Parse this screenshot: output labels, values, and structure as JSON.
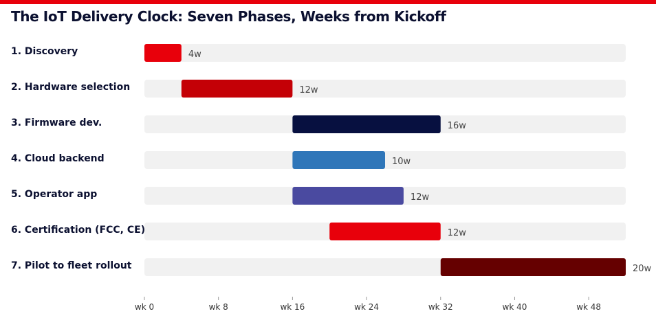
{
  "colors": {
    "accent": "#e8000b",
    "title": "#0b1030",
    "track": "#f1f1f1",
    "axis": "#999999"
  },
  "chart_data": {
    "type": "bar",
    "orientation": "horizontal-gantt",
    "title": "The IoT Delivery Clock: Seven Phases, Weeks from Kickoff",
    "xlabel": "",
    "ylabel": "",
    "xlim": [
      0,
      52
    ],
    "x_ticks": [
      0,
      8,
      16,
      24,
      32,
      40,
      48
    ],
    "x_tick_labels": [
      "wk 0",
      "wk 8",
      "wk 16",
      "wk 24",
      "wk 32",
      "wk 40",
      "wk 48"
    ],
    "grid": false,
    "legend": "none",
    "phases": [
      {
        "label": "1. Discovery",
        "start": 0,
        "end": 4,
        "duration_label": "4w",
        "color": "#e8000b"
      },
      {
        "label": "2. Hardware selection",
        "start": 4,
        "end": 16,
        "duration_label": "12w",
        "color": "#c40006"
      },
      {
        "label": "3. Firmware dev.",
        "start": 16,
        "end": 32,
        "duration_label": "16w",
        "color": "#071040"
      },
      {
        "label": "4. Cloud backend",
        "start": 16,
        "end": 26,
        "duration_label": "10w",
        "color": "#2f76b9"
      },
      {
        "label": "5. Operator app",
        "start": 16,
        "end": 28,
        "duration_label": "12w",
        "color": "#4a4aa0"
      },
      {
        "label": "6. Certification (FCC, CE)",
        "start": 20,
        "end": 32,
        "duration_label": "12w",
        "color": "#e8000b"
      },
      {
        "label": "7. Pilot to fleet rollout",
        "start": 32,
        "end": 52,
        "duration_label": "20w",
        "color": "#650000"
      }
    ]
  }
}
